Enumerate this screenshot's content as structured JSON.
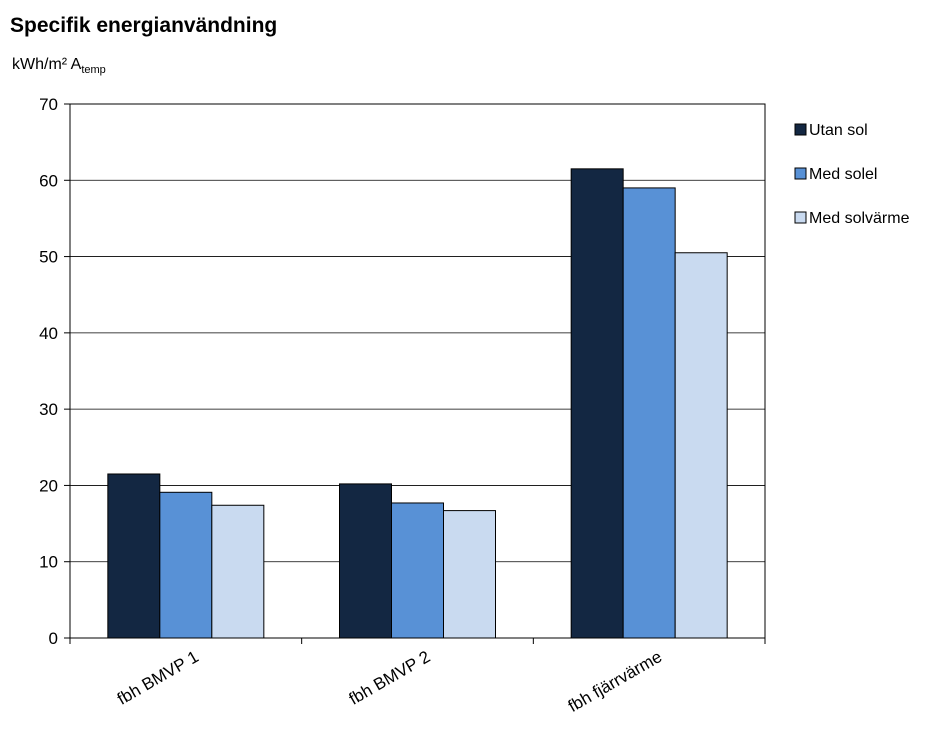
{
  "chart_data": {
    "type": "bar",
    "title": "Specifik energianvändning",
    "ylabel": "kWh/m² A",
    "ylabel_subscript": "temp",
    "ylim": [
      0,
      70
    ],
    "yticks": [
      0,
      10,
      20,
      30,
      40,
      50,
      60,
      70
    ],
    "grid": true,
    "legend_position": "right",
    "categories": [
      "fbh BMVP 1",
      "fbh BMVP 2",
      "fbh fjärrvärme"
    ],
    "series": [
      {
        "name": "Utan sol",
        "color": "#132742",
        "values": [
          21.5,
          20.2,
          61.5
        ]
      },
      {
        "name": "Med solel",
        "color": "#5891d6",
        "values": [
          19.1,
          17.7,
          59.0
        ]
      },
      {
        "name": "Med solvärme",
        "color": "#c9daf0",
        "values": [
          17.4,
          16.7,
          50.5
        ]
      }
    ]
  }
}
